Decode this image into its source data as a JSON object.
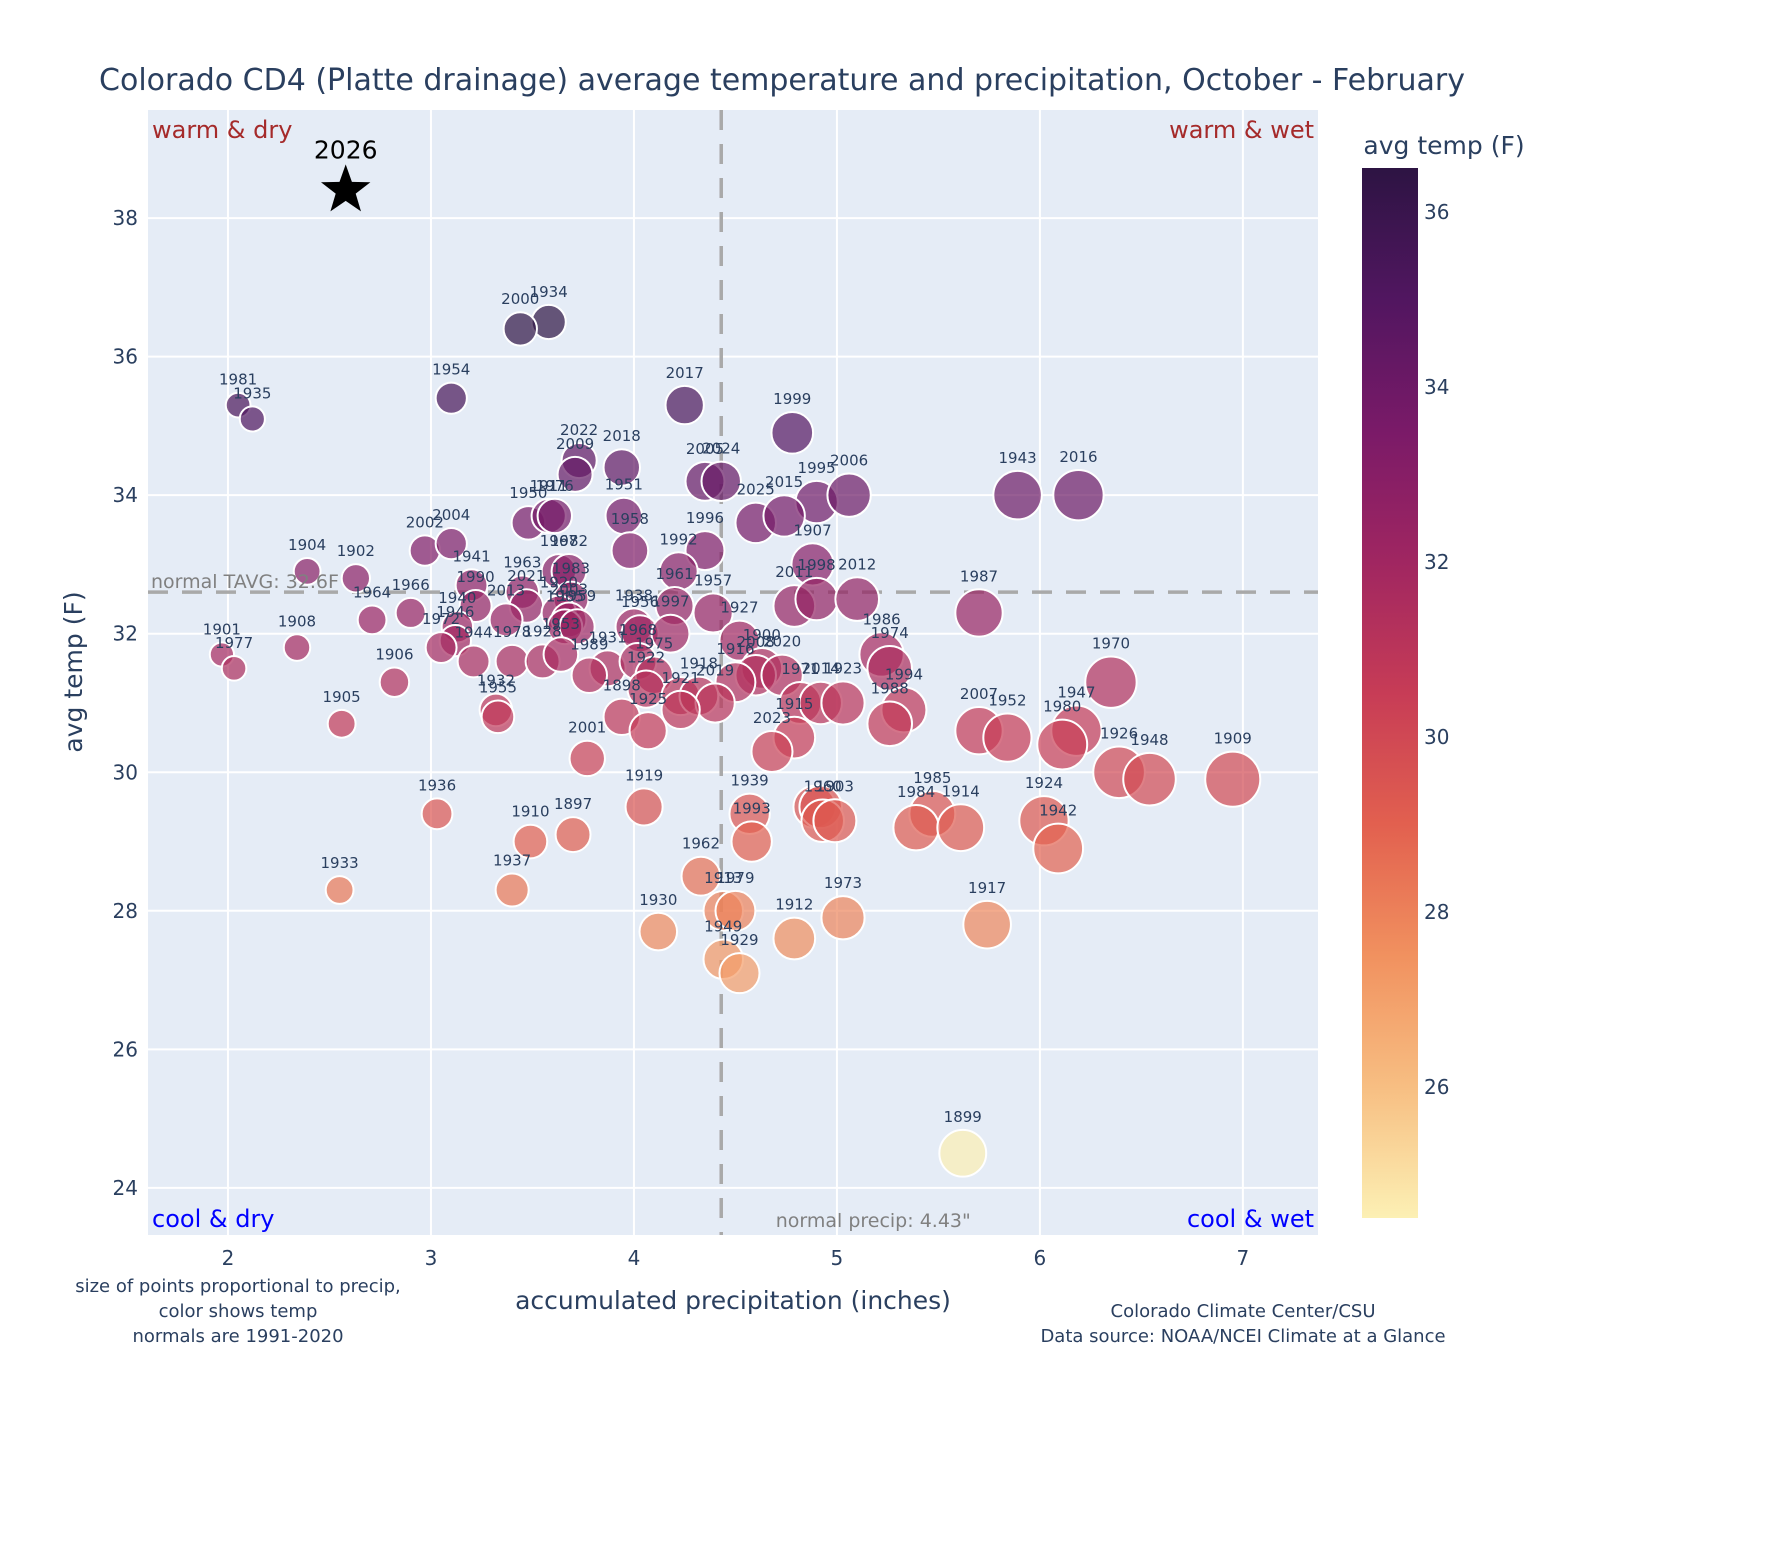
{
  "chart_data": {
    "type": "scatter",
    "title": "Colorado CD4 (Platte drainage) average temperature and precipitation, October - February",
    "xlabel": "accumulated precipitation (inches)",
    "ylabel": "avg temp (F)",
    "xlim": [
      1.606,
      7.37
    ],
    "ylim": [
      23.32,
      39.56
    ],
    "xticks": [
      2,
      3,
      4,
      5,
      6,
      7
    ],
    "yticks": [
      24,
      26,
      28,
      30,
      32,
      34,
      36,
      38
    ],
    "grid": true,
    "colorbar": {
      "title": "avg temp (F)",
      "range": [
        24.5,
        36.5
      ],
      "ticks": [
        26,
        28,
        30,
        32,
        34,
        36
      ],
      "colorscale": [
        "#fcf0b4",
        "#f7be82",
        "#f1915f",
        "#e2604f",
        "#c73c56",
        "#a02661",
        "#7a1a68",
        "#511660",
        "#2d1443"
      ]
    },
    "normals": {
      "tavg": 32.6,
      "tavg_label": "normal TAVG: 32.6F",
      "precip": 4.43,
      "precip_label": "normal precip: 4.43\""
    },
    "quadrant_labels": {
      "warm_dry": "warm & dry",
      "warm_wet": "warm & wet",
      "cool_dry": "cool & dry",
      "cool_wet": "cool & wet"
    },
    "highlight": {
      "label": "2026",
      "x": 2.58,
      "y": 38.4,
      "marker": "star"
    },
    "points": [
      {
        "year": "1934",
        "x": 3.58,
        "y": 36.5,
        "t": 36.5
      },
      {
        "year": "2000",
        "x": 3.44,
        "y": 36.4,
        "t": 36.4
      },
      {
        "year": "1954",
        "x": 3.1,
        "y": 35.4,
        "t": 35.4
      },
      {
        "year": "1981",
        "x": 2.05,
        "y": 35.3,
        "t": 35.3
      },
      {
        "year": "1935",
        "x": 2.12,
        "y": 35.1,
        "t": 35.1
      },
      {
        "year": "2017",
        "x": 4.25,
        "y": 35.3,
        "t": 35.3
      },
      {
        "year": "1999",
        "x": 4.78,
        "y": 34.9,
        "t": 34.9
      },
      {
        "year": "2022",
        "x": 3.73,
        "y": 34.5,
        "t": 34.5
      },
      {
        "year": "2009",
        "x": 3.71,
        "y": 34.3,
        "t": 34.3
      },
      {
        "year": "2018",
        "x": 3.94,
        "y": 34.4,
        "t": 34.4
      },
      {
        "year": "2005",
        "x": 4.35,
        "y": 34.2,
        "t": 34.2
      },
      {
        "year": "2024",
        "x": 4.43,
        "y": 34.2,
        "t": 34.2
      },
      {
        "year": "1995",
        "x": 4.9,
        "y": 33.9,
        "t": 33.9
      },
      {
        "year": "2006",
        "x": 5.06,
        "y": 34.0,
        "t": 34.0
      },
      {
        "year": "1943",
        "x": 5.89,
        "y": 34.0,
        "t": 34.0
      },
      {
        "year": "2016",
        "x": 6.19,
        "y": 34.0,
        "t": 34.0
      },
      {
        "year": "1950",
        "x": 3.48,
        "y": 33.6,
        "t": 33.6
      },
      {
        "year": "1911",
        "x": 3.58,
        "y": 33.7,
        "t": 33.7
      },
      {
        "year": "1976",
        "x": 3.61,
        "y": 33.7,
        "t": 33.7
      },
      {
        "year": "1951",
        "x": 3.95,
        "y": 33.7,
        "t": 33.7
      },
      {
        "year": "2025",
        "x": 4.6,
        "y": 33.6,
        "t": 33.6
      },
      {
        "year": "2015",
        "x": 4.74,
        "y": 33.7,
        "t": 33.7
      },
      {
        "year": "1958",
        "x": 3.98,
        "y": 33.2,
        "t": 33.2
      },
      {
        "year": "1996",
        "x": 4.35,
        "y": 33.2,
        "t": 33.2
      },
      {
        "year": "1907",
        "x": 4.88,
        "y": 33.0,
        "t": 33.0
      },
      {
        "year": "2002",
        "x": 2.97,
        "y": 33.2,
        "t": 33.2
      },
      {
        "year": "2004",
        "x": 3.1,
        "y": 33.3,
        "t": 33.3
      },
      {
        "year": "1992",
        "x": 4.22,
        "y": 32.9,
        "t": 32.9
      },
      {
        "year": "1904",
        "x": 2.39,
        "y": 32.9,
        "t": 32.9
      },
      {
        "year": "1902",
        "x": 2.63,
        "y": 32.8,
        "t": 32.8
      },
      {
        "year": "1941",
        "x": 3.2,
        "y": 32.7,
        "t": 32.7
      },
      {
        "year": "1963",
        "x": 3.45,
        "y": 32.6,
        "t": 32.6
      },
      {
        "year": "1967",
        "x": 3.63,
        "y": 32.9,
        "t": 32.9
      },
      {
        "year": "1982",
        "x": 3.68,
        "y": 32.9,
        "t": 32.9
      },
      {
        "year": "1961",
        "x": 4.2,
        "y": 32.4,
        "t": 32.4
      },
      {
        "year": "1957",
        "x": 4.39,
        "y": 32.3,
        "t": 32.3
      },
      {
        "year": "1983",
        "x": 3.69,
        "y": 32.5,
        "t": 32.5
      },
      {
        "year": "1990",
        "x": 3.22,
        "y": 32.4,
        "t": 32.4
      },
      {
        "year": "2021",
        "x": 3.47,
        "y": 32.4,
        "t": 32.4
      },
      {
        "year": "1920",
        "x": 3.63,
        "y": 32.3,
        "t": 32.3
      },
      {
        "year": "2003",
        "x": 3.68,
        "y": 32.2,
        "t": 32.2
      },
      {
        "year": "2011",
        "x": 4.79,
        "y": 32.4,
        "t": 32.4
      },
      {
        "year": "1998",
        "x": 4.9,
        "y": 32.5,
        "t": 32.5
      },
      {
        "year": "2012",
        "x": 5.1,
        "y": 32.5,
        "t": 32.5
      },
      {
        "year": "1987",
        "x": 5.7,
        "y": 32.3,
        "t": 32.3
      },
      {
        "year": "1964",
        "x": 2.71,
        "y": 32.2,
        "t": 32.2
      },
      {
        "year": "1966",
        "x": 2.9,
        "y": 32.3,
        "t": 32.3
      },
      {
        "year": "1940",
        "x": 3.13,
        "y": 32.1,
        "t": 32.1
      },
      {
        "year": "1946",
        "x": 3.12,
        "y": 31.9,
        "t": 31.9
      },
      {
        "year": "2013",
        "x": 3.37,
        "y": 32.2,
        "t": 32.2
      },
      {
        "year": "1965",
        "x": 3.66,
        "y": 32.1,
        "t": 32.1
      },
      {
        "year": "1959",
        "x": 3.72,
        "y": 32.1,
        "t": 32.1
      },
      {
        "year": "1938",
        "x": 4.0,
        "y": 32.1,
        "t": 32.1
      },
      {
        "year": "1956",
        "x": 4.03,
        "y": 32.0,
        "t": 32.0
      },
      {
        "year": "1997",
        "x": 4.18,
        "y": 32.0,
        "t": 32.0
      },
      {
        "year": "1927",
        "x": 4.52,
        "y": 31.9,
        "t": 31.9
      },
      {
        "year": "1908",
        "x": 2.34,
        "y": 31.8,
        "t": 31.8
      },
      {
        "year": "1972",
        "x": 3.05,
        "y": 31.8,
        "t": 31.8
      },
      {
        "year": "1944",
        "x": 3.21,
        "y": 31.6,
        "t": 31.6
      },
      {
        "year": "1978",
        "x": 3.4,
        "y": 31.6,
        "t": 31.6
      },
      {
        "year": "1928",
        "x": 3.55,
        "y": 31.6,
        "t": 31.6
      },
      {
        "year": "1953",
        "x": 3.64,
        "y": 31.7,
        "t": 31.7
      },
      {
        "year": "1931",
        "x": 3.87,
        "y": 31.5,
        "t": 31.5
      },
      {
        "year": "1968",
        "x": 4.02,
        "y": 31.6,
        "t": 31.6
      },
      {
        "year": "1901",
        "x": 1.97,
        "y": 31.7,
        "t": 31.7
      },
      {
        "year": "1977",
        "x": 2.03,
        "y": 31.5,
        "t": 31.5
      },
      {
        "year": "1989",
        "x": 3.78,
        "y": 31.4,
        "t": 31.4
      },
      {
        "year": "1975",
        "x": 4.1,
        "y": 31.4,
        "t": 31.4
      },
      {
        "year": "1922",
        "x": 4.06,
        "y": 31.2,
        "t": 31.2
      },
      {
        "year": "1900",
        "x": 4.63,
        "y": 31.5,
        "t": 31.5
      },
      {
        "year": "2008",
        "x": 4.6,
        "y": 31.4,
        "t": 31.4
      },
      {
        "year": "2020",
        "x": 4.73,
        "y": 31.4,
        "t": 31.4
      },
      {
        "year": "1916",
        "x": 4.5,
        "y": 31.3,
        "t": 31.3
      },
      {
        "year": "1986",
        "x": 5.22,
        "y": 31.7,
        "t": 31.7
      },
      {
        "year": "1974",
        "x": 5.26,
        "y": 31.5,
        "t": 31.5
      },
      {
        "year": "1906",
        "x": 2.82,
        "y": 31.3,
        "t": 31.3
      },
      {
        "year": "1956b",
        "x": 4.23,
        "y": 31.1,
        "t": 31.1
      },
      {
        "year": "1918",
        "x": 4.32,
        "y": 31.1,
        "t": 31.1
      },
      {
        "year": "2019",
        "x": 4.4,
        "y": 31.0,
        "t": 31.0
      },
      {
        "year": "1921",
        "x": 4.23,
        "y": 30.9,
        "t": 30.9
      },
      {
        "year": "1971",
        "x": 4.82,
        "y": 31.0,
        "t": 31.0
      },
      {
        "year": "2014",
        "x": 4.92,
        "y": 31.0,
        "t": 31.0
      },
      {
        "year": "1923",
        "x": 5.03,
        "y": 31.0,
        "t": 31.0
      },
      {
        "year": "1994",
        "x": 5.33,
        "y": 30.9,
        "t": 30.9
      },
      {
        "year": "1988",
        "x": 5.26,
        "y": 30.7,
        "t": 30.7
      },
      {
        "year": "1898",
        "x": 3.94,
        "y": 30.8,
        "t": 30.8
      },
      {
        "year": "1925",
        "x": 4.07,
        "y": 30.6,
        "t": 30.6
      },
      {
        "year": "1905",
        "x": 2.56,
        "y": 30.7,
        "t": 30.7
      },
      {
        "year": "1932",
        "x": 3.32,
        "y": 30.9,
        "t": 30.9
      },
      {
        "year": "1955",
        "x": 3.33,
        "y": 30.8,
        "t": 30.8
      },
      {
        "year": "1915",
        "x": 4.79,
        "y": 30.5,
        "t": 30.5
      },
      {
        "year": "2023",
        "x": 4.68,
        "y": 30.3,
        "t": 30.3
      },
      {
        "year": "2007",
        "x": 5.7,
        "y": 30.6,
        "t": 30.6
      },
      {
        "year": "1952",
        "x": 5.84,
        "y": 30.5,
        "t": 30.5
      },
      {
        "year": "1947",
        "x": 6.18,
        "y": 30.6,
        "t": 30.6
      },
      {
        "year": "1980",
        "x": 6.11,
        "y": 30.4,
        "t": 30.4
      },
      {
        "year": "1970",
        "x": 6.35,
        "y": 31.3,
        "t": 31.3
      },
      {
        "year": "2001",
        "x": 3.77,
        "y": 30.2,
        "t": 30.2
      },
      {
        "year": "1926",
        "x": 6.39,
        "y": 30.0,
        "t": 30.0
      },
      {
        "year": "1948",
        "x": 6.54,
        "y": 29.9,
        "t": 29.9
      },
      {
        "year": "1909",
        "x": 6.95,
        "y": 29.9,
        "t": 29.9
      },
      {
        "year": "1919",
        "x": 4.05,
        "y": 29.5,
        "t": 29.5
      },
      {
        "year": "1936",
        "x": 3.03,
        "y": 29.4,
        "t": 29.4
      },
      {
        "year": "1939",
        "x": 4.57,
        "y": 29.4,
        "t": 29.4
      },
      {
        "year": "1910b",
        "x": 4.89,
        "y": 29.5,
        "t": 29.5
      },
      {
        "year": "1920b",
        "x": 4.92,
        "y": 29.5,
        "t": 29.5
      },
      {
        "year": "1960",
        "x": 4.93,
        "y": 29.3,
        "t": 29.3
      },
      {
        "year": "1903",
        "x": 4.99,
        "y": 29.3,
        "t": 29.3
      },
      {
        "year": "1985",
        "x": 5.47,
        "y": 29.4,
        "t": 29.4
      },
      {
        "year": "1984",
        "x": 5.39,
        "y": 29.2,
        "t": 29.2
      },
      {
        "year": "1914",
        "x": 5.61,
        "y": 29.2,
        "t": 29.2
      },
      {
        "year": "1924",
        "x": 6.02,
        "y": 29.3,
        "t": 29.3
      },
      {
        "year": "1942",
        "x": 6.09,
        "y": 28.9,
        "t": 28.9
      },
      {
        "year": "1910",
        "x": 3.49,
        "y": 29.0,
        "t": 29.0
      },
      {
        "year": "1897",
        "x": 3.7,
        "y": 29.1,
        "t": 29.1
      },
      {
        "year": "1993",
        "x": 4.58,
        "y": 29.0,
        "t": 29.0
      },
      {
        "year": "1933",
        "x": 2.55,
        "y": 28.3,
        "t": 28.3
      },
      {
        "year": "1937",
        "x": 3.4,
        "y": 28.3,
        "t": 28.3
      },
      {
        "year": "1962",
        "x": 4.33,
        "y": 28.5,
        "t": 28.5
      },
      {
        "year": "1913",
        "x": 4.44,
        "y": 28.0,
        "t": 28.0
      },
      {
        "year": "1979",
        "x": 4.5,
        "y": 28.0,
        "t": 28.0
      },
      {
        "year": "1973",
        "x": 5.03,
        "y": 27.9,
        "t": 27.9
      },
      {
        "year": "1917",
        "x": 5.74,
        "y": 27.8,
        "t": 27.8
      },
      {
        "year": "1930",
        "x": 4.12,
        "y": 27.7,
        "t": 27.7
      },
      {
        "year": "1912",
        "x": 4.79,
        "y": 27.6,
        "t": 27.6
      },
      {
        "year": "1949",
        "x": 4.44,
        "y": 27.3,
        "t": 27.3
      },
      {
        "year": "1929",
        "x": 4.52,
        "y": 27.1,
        "t": 27.1
      },
      {
        "year": "1899",
        "x": 5.62,
        "y": 24.5,
        "t": 24.5
      }
    ],
    "label_hidden": [
      "1956b",
      "1910b",
      "1920b"
    ]
  },
  "footnotes": {
    "left": [
      "size of points proportional to precip,",
      "color shows temp",
      "normals are 1991-2020"
    ],
    "right": [
      "Colorado Climate Center/CSU",
      "Data source: NOAA/NCEI Climate at a Glance"
    ]
  }
}
